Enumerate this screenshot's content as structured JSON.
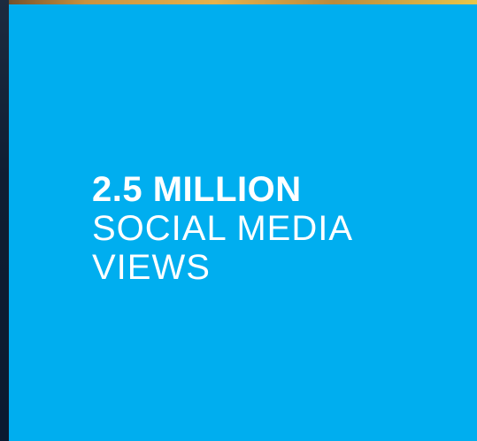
{
  "stat": {
    "value": "2.5 MILLION",
    "label_line1": "SOCIAL MEDIA",
    "label_line2": "VIEWS"
  },
  "colors": {
    "panel": "#00aeef",
    "text": "#ffffff",
    "edge": "#0a1a30"
  }
}
